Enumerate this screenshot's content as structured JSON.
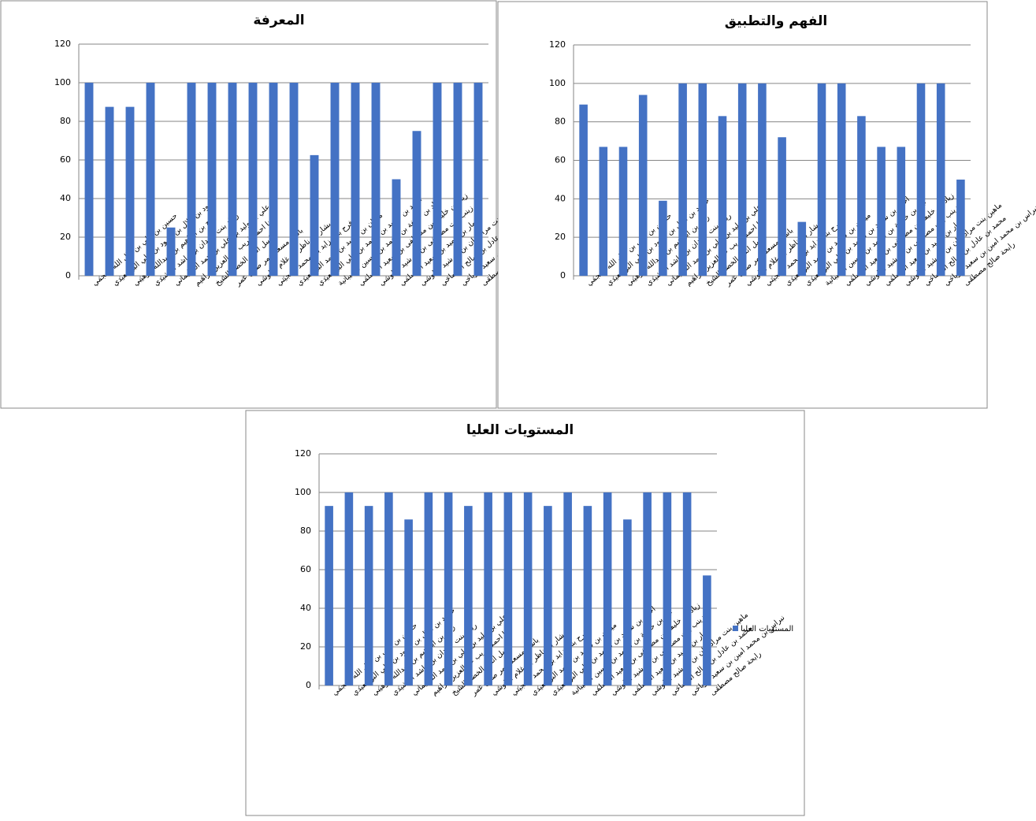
{
  "chart_data": [
    {
      "type": "bar",
      "title": "المعرفة",
      "categories": [
        "حسين بن علي بن مال الله العجمي",
        "حمود بن هلال بن حمود بن علي البوسعيدي",
        "روح بن ابراهيم بن عبدالله الوهيبي",
        "ريناد بنت حمدان بن راشد الرشيدي",
        "علي بن وليد بن علي بن حمد السليماني",
        "هنا احمد غريب عبدالعزيز ابراهيم",
        "باسل انس الخضر الشيخ",
        "باسم مسعد عمر صدق عمر",
        "بشار بن ناظر بن غلام البلوشي",
        "فرح بنت زايد بن محمد المجيني",
        "ميران بن سعيد بن احمد البوسعيدي",
        "احمد بن سعيد بن محمد بن علي البوسعيدي",
        "اياد بن خليفة بن محمد بن حسين الشيبانية",
        "زياد بن خليفة بن مصطفى بن سعيد المسلمي",
        "زينب بنت مصطفى بن خرشيد البلوشي",
        "عمار بن حميد بن سعيد المسلمي",
        "ماهين بنت مراد جان بن خرشيد البلوشي",
        "محمد بن عادل بن صالح الشماخي",
        "نبراس بن محمد امين بن سعيد الرياحي",
        "رابحة صالح مصطفى"
      ],
      "values": [
        100,
        87.5,
        87.5,
        100,
        25,
        100,
        100,
        100,
        100,
        100,
        100,
        62.5,
        100,
        100,
        100,
        50,
        75,
        100,
        100,
        100
      ],
      "color": "#4472c4",
      "ylim": [
        0,
        120
      ],
      "yticks": [
        0,
        20,
        40,
        60,
        80,
        100,
        120
      ],
      "grid": true
    },
    {
      "type": "bar",
      "title": "الفهم والتطبيق",
      "categories": [
        "حسين بن علي بن مال الله العجمي",
        "حمود بن هلال بن حمود بن علي البوسعيدي",
        "روح بن ابراهيم بن عبدالله الوهيبي",
        "ريناد بنت حمدان بن راشد الرشيدي",
        "علي بن وليد بن علي بن حمد السليماني",
        "هنا احمد غريب عبدالعزيز ابراهيم",
        "باسل انس الخضر الشيخ",
        "باسم مسعد عمر صدق عمر",
        "بشار بن ناظر بن غلام البلوشي",
        "فرح بنت زايد بن محمد المجيني",
        "ميران بن سعيد بن احمد البوسعيدي",
        "احمد بن سعيد بن محمد بن علي البوسعيدي",
        "اياد بن خليفة بن محمد بن حسين الشيبانية",
        "زياد بن خليفة بن مصطفى بن سعيد المسلمي",
        "زينب بنت مصطفى بن خرشيد البلوشي",
        "عمار بن حميد بن سعيد المسلمي",
        "ماهين بنت مراد جان بن خرشيد البلوشي",
        "محمد بن عادل بن صالح الشماخي",
        "نبراس بن محمد امين بن سعيد الرياحي",
        "رابحة صالح مصطفى"
      ],
      "values": [
        89,
        67,
        67,
        94,
        39,
        100,
        100,
        83,
        100,
        100,
        72,
        28,
        100,
        100,
        83,
        67,
        67,
        100,
        100,
        50
      ],
      "color": "#4472c4",
      "ylim": [
        0,
        120
      ],
      "yticks": [
        0,
        20,
        40,
        60,
        80,
        100,
        120
      ],
      "grid": true
    },
    {
      "type": "bar",
      "title": "المستويات العليا",
      "categories": [
        "حسين بن علي بن مال الله العجمي",
        "حمود بن هلال بن حمود بن علي البوسعيدي",
        "روح بن ابراهيم بن عبدالله الوهيبي",
        "ريناد بنت حمدان بن راشد الرشيدي",
        "علي بن وليد بن علي بن حمد السليماني",
        "هنا احمد غريب عبدالعزيز ابراهيم",
        "باسل انس الخضر الشيخ",
        "باسم مسعد عمر صدق عمر",
        "بشار بن ناظر بن غلام البلوشي",
        "فرح بنت زايد بن محمد المجيني",
        "ميران بن سعيد بن احمد البوسعيدي",
        "احمد بن سعيد بن محمد بن علي البوسعيدي",
        "اياد بن خليفة بن محمد بن حسين الشيبانية",
        "زياد بن خليفة بن مصطفى بن سعيد المسلمي",
        "زينب بنت مصطفى بن خرشيد البلوشي",
        "عمار بن حميد بن سعيد المسلمي",
        "ماهين بنت مراد جان بن خرشيد البلوشي",
        "محمد بن عادل بن صالح الشماخي",
        "نبراس بن محمد امين بن سعيد الرياحي",
        "رابحة صالح مصطفى"
      ],
      "series": [
        {
          "name": "المستويات العليا",
          "color": "#4472c4",
          "values": [
            93,
            100,
            93,
            100,
            86,
            100,
            100,
            93,
            100,
            100,
            100,
            93,
            100,
            93,
            100,
            86,
            100,
            100,
            100,
            57
          ]
        }
      ],
      "ylim": [
        0,
        120
      ],
      "yticks": [
        0,
        20,
        40,
        60,
        80,
        100,
        120
      ],
      "grid": true,
      "legend": "right"
    }
  ]
}
